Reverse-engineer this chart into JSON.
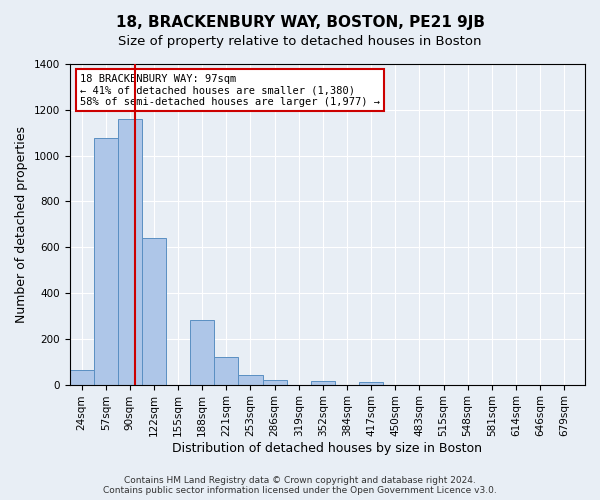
{
  "title": "18, BRACKENBURY WAY, BOSTON, PE21 9JB",
  "subtitle": "Size of property relative to detached houses in Boston",
  "xlabel": "Distribution of detached houses by size in Boston",
  "ylabel": "Number of detached properties",
  "bin_edges": [
    7.5,
    40.5,
    73.5,
    106.5,
    139.5,
    172.5,
    205.5,
    238.5,
    271.5,
    304.5,
    337.5,
    370.5,
    403.5,
    436.5,
    469.5,
    502.5,
    535.5,
    568.5,
    601.5,
    634.5,
    667.5,
    700.5
  ],
  "bin_labels": [
    "24sqm",
    "57sqm",
    "90sqm",
    "122sqm",
    "155sqm",
    "188sqm",
    "221sqm",
    "253sqm",
    "286sqm",
    "319sqm",
    "352sqm",
    "384sqm",
    "417sqm",
    "450sqm",
    "483sqm",
    "515sqm",
    "548sqm",
    "581sqm",
    "614sqm",
    "646sqm",
    "679sqm"
  ],
  "bar_values": [
    65,
    1075,
    1160,
    640,
    0,
    280,
    120,
    40,
    20,
    0,
    15,
    0,
    10,
    0,
    0,
    0,
    0,
    0,
    0,
    0,
    0
  ],
  "bar_color": "#aec6e8",
  "bar_edge_color": "#5a8fc2",
  "vline_x": 97,
  "vline_color": "#cc0000",
  "ylim": [
    0,
    1400
  ],
  "xlim_min": 7.5,
  "xlim_max": 712.5,
  "annotation_text": "18 BRACKENBURY WAY: 97sqm\n← 41% of detached houses are smaller (1,380)\n58% of semi-detached houses are larger (1,977) →",
  "annotation_box_color": "#ffffff",
  "annotation_box_edge": "#cc0000",
  "footer_line1": "Contains HM Land Registry data © Crown copyright and database right 2024.",
  "footer_line2": "Contains public sector information licensed under the Open Government Licence v3.0.",
  "background_color": "#e8eef5",
  "plot_bg_color": "#e8eef5",
  "grid_color": "#ffffff",
  "title_fontsize": 11,
  "subtitle_fontsize": 9.5,
  "axis_label_fontsize": 9,
  "tick_fontsize": 7.5,
  "footer_fontsize": 6.5,
  "yticks": [
    0,
    200,
    400,
    600,
    800,
    1000,
    1200,
    1400
  ]
}
